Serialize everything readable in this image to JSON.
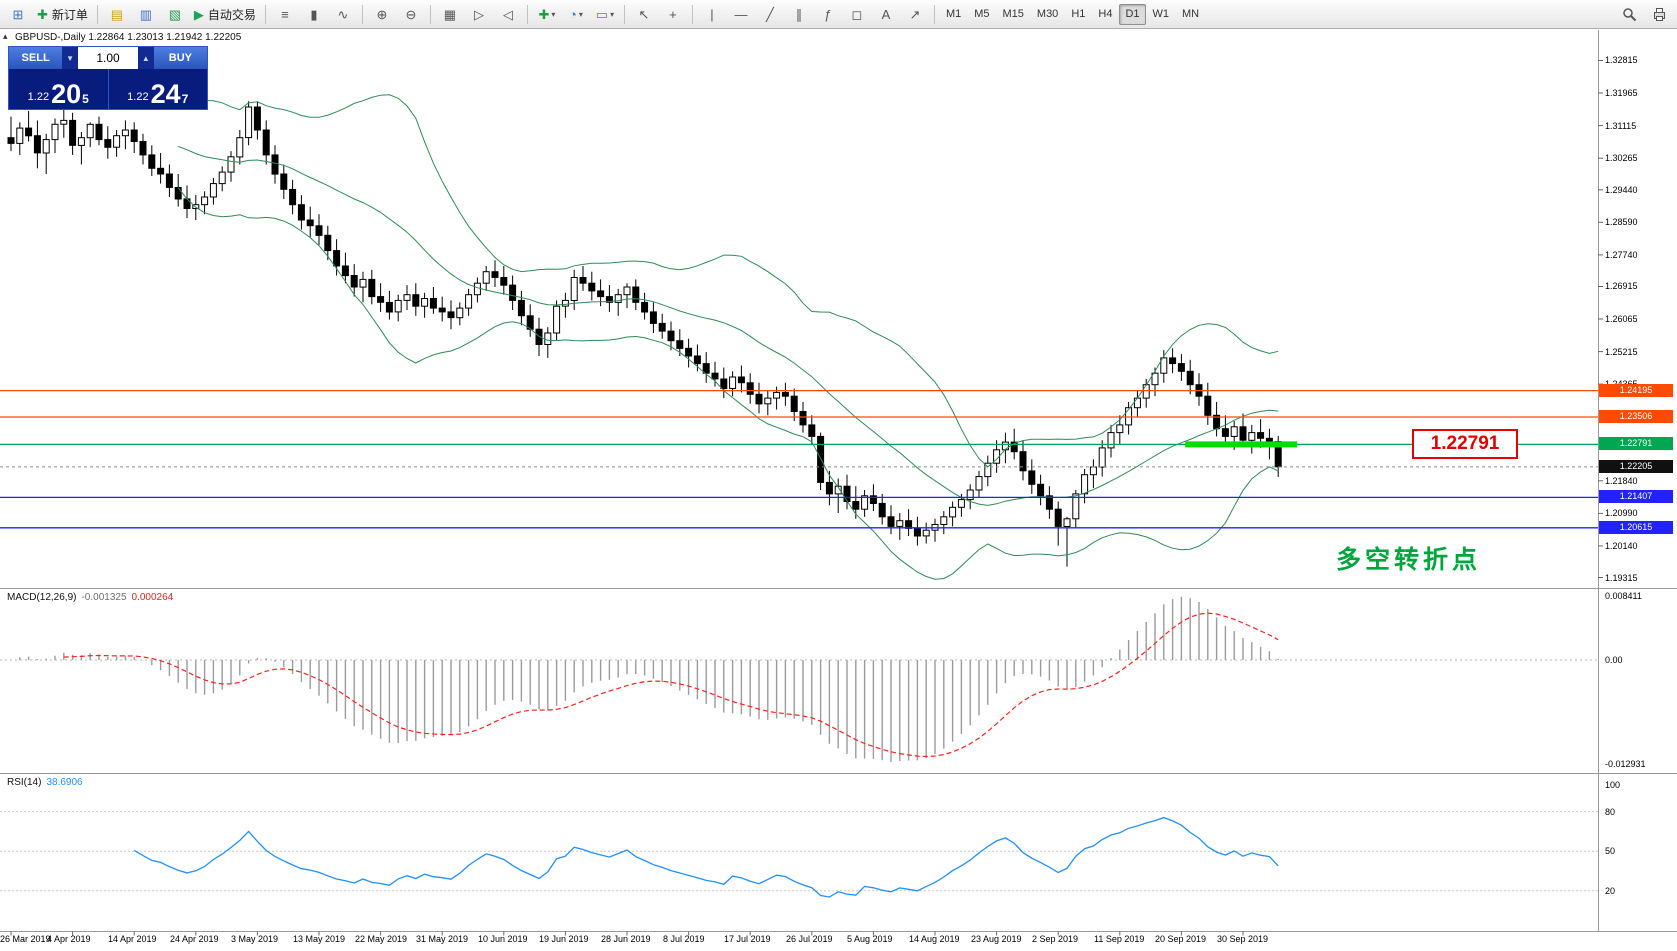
{
  "toolbar": {
    "groups": [
      {
        "items": [
          {
            "name": "new-chart-button",
            "icon": "new-chart-icon",
            "glyph": "⊞",
            "color": "#3c78c8"
          },
          {
            "name": "new-order-button",
            "icon": "new-order-icon",
            "glyph": "✚",
            "color": "#1f9d46",
            "label": "新订单"
          }
        ]
      },
      {
        "items": [
          {
            "name": "market-watch-button",
            "icon": "market-watch-icon",
            "glyph": "▤",
            "color": "#d4a017"
          },
          {
            "name": "data-window-button",
            "icon": "data-window-icon",
            "glyph": "▥",
            "color": "#3c6fd0"
          },
          {
            "name": "navigator-button",
            "icon": "navigator-icon",
            "glyph": "▧",
            "color": "#2f9d4e"
          },
          {
            "name": "autotrading-button",
            "icon": "autotrading-icon",
            "glyph": "▶",
            "color": "#18a558",
            "label": "自动交易"
          }
        ]
      },
      {
        "items": [
          {
            "name": "bar-chart-button",
            "icon": "bar-chart-icon",
            "glyph": "≡",
            "color": "#555555"
          },
          {
            "name": "candlestick-chart-button",
            "icon": "candlestick-icon",
            "glyph": "▮",
            "color": "#555555"
          },
          {
            "name": "line-chart-button",
            "icon": "line-chart-icon",
            "glyph": "∿",
            "color": "#555555"
          }
        ]
      },
      {
        "items": [
          {
            "name": "zoom-in-button",
            "icon": "zoom-in-icon",
            "glyph": "⊕",
            "color": "#555555"
          },
          {
            "name": "zoom-out-button",
            "icon": "zoom-out-icon",
            "glyph": "⊖",
            "color": "#555555"
          }
        ]
      },
      {
        "items": [
          {
            "name": "tile-windows-button",
            "icon": "tile-windows-icon",
            "glyph": "▦",
            "color": "#555555"
          },
          {
            "name": "auto-scroll-button",
            "icon": "auto-scroll-icon",
            "glyph": "▷",
            "color": "#555555"
          },
          {
            "name": "chart-shift-button",
            "icon": "chart-shift-icon",
            "glyph": "◁",
            "color": "#555555"
          }
        ]
      },
      {
        "items": [
          {
            "name": "indicators-button",
            "icon": "indicators-icon",
            "glyph": "✚",
            "color": "#1f9d46",
            "dropdown": true
          },
          {
            "name": "periods-button",
            "icon": "periods-icon",
            "glyph": "◔",
            "color": "#3c6fd0",
            "dropdown": true
          },
          {
            "name": "templates-button",
            "icon": "templates-icon",
            "glyph": "▭",
            "color": "#8a5fd0",
            "dropdown": true
          }
        ]
      },
      {
        "items": [
          {
            "name": "cursor-button",
            "icon": "cursor-icon",
            "glyph": "↖",
            "color": "#555555"
          },
          {
            "name": "crosshair-button",
            "icon": "crosshair-icon",
            "glyph": "+",
            "color": "#555555"
          }
        ]
      },
      {
        "items": [
          {
            "name": "vertical-line-button",
            "icon": "vertical-line-icon",
            "glyph": "|",
            "color": "#555555"
          },
          {
            "name": "horizontal-line-button",
            "icon": "horizontal-line-icon",
            "glyph": "—",
            "color": "#555555"
          },
          {
            "name": "trendline-button",
            "icon": "trendline-icon",
            "glyph": "╱",
            "color": "#555555"
          },
          {
            "name": "channel-button",
            "icon": "channel-icon",
            "glyph": "∥",
            "color": "#555555"
          },
          {
            "name": "fibonacci-button",
            "icon": "fibonacci-icon",
            "glyph": "ƒ",
            "color": "#555555"
          },
          {
            "name": "shapes-button",
            "icon": "shapes-icon",
            "glyph": "◻",
            "color": "#555555"
          },
          {
            "name": "text-button",
            "icon": "text-icon",
            "glyph": "A",
            "color": "#555555"
          },
          {
            "name": "arrows-button",
            "icon": "arrows-icon",
            "glyph": "↗",
            "color": "#555555"
          }
        ]
      }
    ],
    "timeframes": [
      {
        "label": "M1"
      },
      {
        "label": "M5"
      },
      {
        "label": "M15"
      },
      {
        "label": "M30"
      },
      {
        "label": "H1"
      },
      {
        "label": "H4"
      },
      {
        "label": "D1",
        "active": true
      },
      {
        "label": "W1"
      },
      {
        "label": "MN"
      }
    ]
  },
  "trade_panel": {
    "sell_label": "SELL",
    "buy_label": "BUY",
    "volume": "1.00",
    "sell": {
      "prefix": "1.22",
      "big": "20",
      "sup": "5"
    },
    "buy": {
      "prefix": "1.22",
      "big": "24",
      "sup": "7"
    }
  },
  "chart": {
    "symbol_line": "GBPUSD-,Daily 1.22864 1.23013 1.21942 1.22205",
    "current_price": {
      "label": "1.22205",
      "value": 1.22205,
      "color": "#101010"
    },
    "hlines": [
      {
        "value": 1.24195,
        "label": "1.24195",
        "color": "#ff4a00"
      },
      {
        "value": 1.23506,
        "label": "1.23506",
        "color": "#ff4a00"
      },
      {
        "value": 1.22791,
        "label": "1.22791",
        "color": "#00a651"
      },
      {
        "value": 1.21407,
        "label": "1.21407",
        "color": "#2222ff"
      },
      {
        "value": 1.20615,
        "label": "1.20615",
        "color": "#2222ff"
      }
    ],
    "highlight": {
      "value": 1.22791,
      "color": "#00dd00"
    },
    "callout": {
      "text": "1.22791",
      "color": "#e60000"
    },
    "annotation": {
      "text": "多空转折点",
      "color": "#00a63c"
    },
    "y_ticks": [
      "1.32815",
      "1.31965",
      "1.31115",
      "1.30265",
      "1.29440",
      "1.28590",
      "1.27740",
      "1.26915",
      "1.26065",
      "1.25215",
      "1.24365",
      "1.21840",
      "1.20990",
      "1.20140",
      "1.19315"
    ]
  },
  "chart_data": {
    "type": "candlestick",
    "symbol": "GBPUSD-",
    "timeframe": "Daily",
    "ohlc_header": {
      "open": "1.22864",
      "high": "1.23013",
      "low": "1.21942",
      "close": "1.22205"
    },
    "y_range": [
      1.19315,
      1.32815
    ],
    "x_label_step": 7,
    "x_labels": [
      "26 Mar 2019",
      "4 Apr 2019",
      "14 Apr 2019",
      "24 Apr 2019",
      "3 May 2019",
      "13 May 2019",
      "22 May 2019",
      "31 May 2019",
      "10 Jun 2019",
      "19 Jun 2019",
      "28 Jun 2019",
      "8 Jul 2019",
      "17 Jul 2019",
      "26 Jul 2019",
      "5 Aug 2019",
      "14 Aug 2019",
      "23 Aug 2019",
      "2 Sep 2019",
      "11 Sep 2019",
      "20 Sep 2019",
      "30 Sep 2019"
    ],
    "indicators": [
      {
        "name": "Bollinger Bands",
        "period": 20,
        "deviation": 2,
        "color": "#2e8b57"
      },
      {
        "name": "MACD",
        "fast": 12,
        "slow": 26,
        "signal": 9,
        "histogram_color": "#9b9b9b",
        "signal_color": "#ff2020"
      },
      {
        "name": "RSI",
        "period": 14,
        "color": "#1e90ff"
      }
    ],
    "style": {
      "bull": "#ffffff",
      "bear": "#000000",
      "outline": "#000000"
    },
    "ohlc": [
      [
        1.308,
        1.3135,
        1.3045,
        1.3065
      ],
      [
        1.3065,
        1.312,
        1.3035,
        1.3105
      ],
      [
        1.3105,
        1.315,
        1.307,
        1.3085
      ],
      [
        1.3085,
        1.3125,
        1.3,
        1.304
      ],
      [
        1.304,
        1.309,
        1.2985,
        1.3075
      ],
      [
        1.3075,
        1.313,
        1.304,
        1.3115
      ],
      [
        1.3115,
        1.316,
        1.308,
        1.3125
      ],
      [
        1.3125,
        1.3145,
        1.3035,
        1.306
      ],
      [
        1.306,
        1.3095,
        1.301,
        1.308
      ],
      [
        1.308,
        1.312,
        1.3055,
        1.3115
      ],
      [
        1.3115,
        1.3135,
        1.306,
        1.3075
      ],
      [
        1.3075,
        1.311,
        1.3025,
        1.3055
      ],
      [
        1.3055,
        1.31,
        1.303,
        1.3085
      ],
      [
        1.3085,
        1.3125,
        1.305,
        1.31
      ],
      [
        1.31,
        1.312,
        1.304,
        1.307
      ],
      [
        1.307,
        1.309,
        1.301,
        1.3035
      ],
      [
        1.3035,
        1.306,
        1.298,
        1.3
      ],
      [
        1.3,
        1.304,
        1.296,
        1.2985
      ],
      [
        1.2985,
        1.301,
        1.2925,
        1.295
      ],
      [
        1.295,
        1.2985,
        1.29,
        1.292
      ],
      [
        1.292,
        1.2955,
        1.287,
        1.2895
      ],
      [
        1.2895,
        1.293,
        1.2865,
        1.2905
      ],
      [
        1.2905,
        1.294,
        1.288,
        1.2925
      ],
      [
        1.2925,
        1.2975,
        1.2905,
        1.296
      ],
      [
        1.296,
        1.3005,
        1.294,
        1.299
      ],
      [
        1.299,
        1.3045,
        1.2965,
        1.303
      ],
      [
        1.303,
        1.31,
        1.301,
        1.308
      ],
      [
        1.308,
        1.3175,
        1.306,
        1.316
      ],
      [
        1.316,
        1.3175,
        1.3075,
        1.31
      ],
      [
        1.31,
        1.3125,
        1.301,
        1.3035
      ],
      [
        1.3035,
        1.306,
        1.296,
        1.2985
      ],
      [
        1.2985,
        1.301,
        1.292,
        1.2945
      ],
      [
        1.2945,
        1.297,
        1.288,
        1.2905
      ],
      [
        1.2905,
        1.293,
        1.284,
        1.2865
      ],
      [
        1.2865,
        1.29,
        1.282,
        1.285
      ],
      [
        1.285,
        1.288,
        1.28,
        1.2825
      ],
      [
        1.2825,
        1.285,
        1.276,
        1.2785
      ],
      [
        1.2785,
        1.2815,
        1.272,
        1.2745
      ],
      [
        1.2745,
        1.278,
        1.27,
        1.272
      ],
      [
        1.272,
        1.275,
        1.2665,
        1.269
      ],
      [
        1.269,
        1.273,
        1.265,
        1.271
      ],
      [
        1.271,
        1.2735,
        1.2645,
        1.2665
      ],
      [
        1.2665,
        1.27,
        1.2625,
        1.265
      ],
      [
        1.265,
        1.268,
        1.2605,
        1.2625
      ],
      [
        1.2625,
        1.267,
        1.26,
        1.2655
      ],
      [
        1.2655,
        1.2695,
        1.263,
        1.267
      ],
      [
        1.267,
        1.27,
        1.2615,
        1.264
      ],
      [
        1.264,
        1.2675,
        1.261,
        1.266
      ],
      [
        1.266,
        1.269,
        1.262,
        1.2635
      ],
      [
        1.2635,
        1.2665,
        1.26,
        1.2625
      ],
      [
        1.2625,
        1.2655,
        1.258,
        1.261
      ],
      [
        1.261,
        1.265,
        1.259,
        1.2635
      ],
      [
        1.2635,
        1.2685,
        1.2615,
        1.267
      ],
      [
        1.267,
        1.2715,
        1.265,
        1.27
      ],
      [
        1.27,
        1.2745,
        1.268,
        1.273
      ],
      [
        1.273,
        1.276,
        1.269,
        1.2715
      ],
      [
        1.2715,
        1.2745,
        1.267,
        1.2695
      ],
      [
        1.2695,
        1.272,
        1.263,
        1.2655
      ],
      [
        1.2655,
        1.268,
        1.259,
        1.2615
      ],
      [
        1.2615,
        1.2645,
        1.256,
        1.258
      ],
      [
        1.258,
        1.261,
        1.251,
        1.254
      ],
      [
        1.254,
        1.2585,
        1.2505,
        1.257
      ],
      [
        1.257,
        1.2655,
        1.255,
        1.264
      ],
      [
        1.264,
        1.2675,
        1.261,
        1.2655
      ],
      [
        1.2655,
        1.2735,
        1.263,
        1.2715
      ],
      [
        1.2715,
        1.2745,
        1.268,
        1.27
      ],
      [
        1.27,
        1.273,
        1.2655,
        1.268
      ],
      [
        1.268,
        1.271,
        1.264,
        1.2665
      ],
      [
        1.2665,
        1.2695,
        1.2625,
        1.265
      ],
      [
        1.265,
        1.2685,
        1.2615,
        1.267
      ],
      [
        1.267,
        1.27,
        1.2635,
        1.269
      ],
      [
        1.269,
        1.271,
        1.263,
        1.265
      ],
      [
        1.265,
        1.2675,
        1.2605,
        1.2625
      ],
      [
        1.2625,
        1.265,
        1.257,
        1.2595
      ],
      [
        1.2595,
        1.262,
        1.2555,
        1.2575
      ],
      [
        1.2575,
        1.26,
        1.2525,
        1.255
      ],
      [
        1.255,
        1.258,
        1.251,
        1.253
      ],
      [
        1.253,
        1.2555,
        1.248,
        1.251
      ],
      [
        1.251,
        1.254,
        1.247,
        1.249
      ],
      [
        1.249,
        1.252,
        1.244,
        1.2465
      ],
      [
        1.2465,
        1.2495,
        1.243,
        1.245
      ],
      [
        1.245,
        1.248,
        1.24,
        1.2425
      ],
      [
        1.2425,
        1.247,
        1.2405,
        1.2455
      ],
      [
        1.2455,
        1.2485,
        1.2415,
        1.244
      ],
      [
        1.244,
        1.2465,
        1.2385,
        1.241
      ],
      [
        1.241,
        1.244,
        1.236,
        1.2385
      ],
      [
        1.2385,
        1.242,
        1.2355,
        1.24
      ],
      [
        1.24,
        1.243,
        1.237,
        1.2415
      ],
      [
        1.2415,
        1.244,
        1.238,
        1.2405
      ],
      [
        1.2405,
        1.2425,
        1.234,
        1.2365
      ],
      [
        1.2365,
        1.239,
        1.231,
        1.233
      ],
      [
        1.233,
        1.2355,
        1.228,
        1.23
      ],
      [
        1.23,
        1.231,
        1.216,
        1.218
      ],
      [
        1.218,
        1.221,
        1.212,
        1.215
      ],
      [
        1.215,
        1.219,
        1.21,
        1.217
      ],
      [
        1.217,
        1.22,
        1.211,
        1.213
      ],
      [
        1.213,
        1.217,
        1.2085,
        1.211
      ],
      [
        1.211,
        1.216,
        1.209,
        1.2145
      ],
      [
        1.2145,
        1.2175,
        1.2105,
        1.2125
      ],
      [
        1.2125,
        1.215,
        1.207,
        1.209
      ],
      [
        1.209,
        1.212,
        1.2045,
        1.2065
      ],
      [
        1.2065,
        1.21,
        1.203,
        1.208
      ],
      [
        1.208,
        1.211,
        1.204,
        1.206
      ],
      [
        1.206,
        1.209,
        1.2015,
        1.204
      ],
      [
        1.204,
        1.2075,
        1.202,
        1.2055
      ],
      [
        1.2055,
        1.2085,
        1.2025,
        1.207
      ],
      [
        1.207,
        1.2105,
        1.2045,
        1.209
      ],
      [
        1.209,
        1.213,
        1.2065,
        1.2115
      ],
      [
        1.2115,
        1.215,
        1.209,
        1.2135
      ],
      [
        1.2135,
        1.2175,
        1.211,
        1.216
      ],
      [
        1.216,
        1.221,
        1.214,
        1.2195
      ],
      [
        1.2195,
        1.225,
        1.217,
        1.223
      ],
      [
        1.223,
        1.229,
        1.2205,
        1.2265
      ],
      [
        1.2265,
        1.231,
        1.223,
        1.2285
      ],
      [
        1.2285,
        1.232,
        1.224,
        1.226
      ],
      [
        1.226,
        1.229,
        1.2185,
        1.221
      ],
      [
        1.221,
        1.224,
        1.215,
        1.2175
      ],
      [
        1.2175,
        1.22,
        1.212,
        1.2145
      ],
      [
        1.2145,
        1.217,
        1.2085,
        1.211
      ],
      [
        1.211,
        1.213,
        1.2015,
        1.2065
      ],
      [
        1.2065,
        1.209,
        1.196,
        1.2085
      ],
      [
        1.2085,
        1.216,
        1.206,
        1.215
      ],
      [
        1.215,
        1.2215,
        1.2125,
        1.22
      ],
      [
        1.22,
        1.224,
        1.2165,
        1.222
      ],
      [
        1.222,
        1.229,
        1.2195,
        1.227
      ],
      [
        1.227,
        1.233,
        1.2245,
        1.231
      ],
      [
        1.231,
        1.2355,
        1.228,
        1.233
      ],
      [
        1.233,
        1.239,
        1.2305,
        1.2375
      ],
      [
        1.2375,
        1.242,
        1.235,
        1.24
      ],
      [
        1.24,
        1.245,
        1.2375,
        1.2435
      ],
      [
        1.2435,
        1.248,
        1.2405,
        1.2465
      ],
      [
        1.2465,
        1.2525,
        1.244,
        1.2505
      ],
      [
        1.2505,
        1.253,
        1.2465,
        1.249
      ],
      [
        1.249,
        1.2515,
        1.2445,
        1.247
      ],
      [
        1.247,
        1.25,
        1.241,
        1.2435
      ],
      [
        1.2435,
        1.2465,
        1.238,
        1.2405
      ],
      [
        1.2405,
        1.244,
        1.233,
        1.2355
      ],
      [
        1.2355,
        1.239,
        1.23,
        1.232
      ],
      [
        1.232,
        1.2355,
        1.228,
        1.23
      ],
      [
        1.23,
        1.234,
        1.2265,
        1.2325
      ],
      [
        1.2325,
        1.236,
        1.2285,
        1.229
      ],
      [
        1.229,
        1.233,
        1.2255,
        1.231
      ],
      [
        1.231,
        1.2345,
        1.227,
        1.2295
      ],
      [
        1.2295,
        1.232,
        1.224,
        1.2286
      ],
      [
        1.22864,
        1.23013,
        1.21942,
        1.22205
      ]
    ]
  },
  "macd_panel": {
    "label": "MACD(12,26,9)",
    "main_value": "-0.001325",
    "signal_value": "0.000264",
    "axis_top": "0.008411",
    "axis_zero": "0.00",
    "axis_bottom": "-0.012931"
  },
  "rsi_panel": {
    "label": "RSI(14)",
    "value": "38.6906",
    "levels": [
      "100",
      "80",
      "50",
      "20"
    ]
  }
}
